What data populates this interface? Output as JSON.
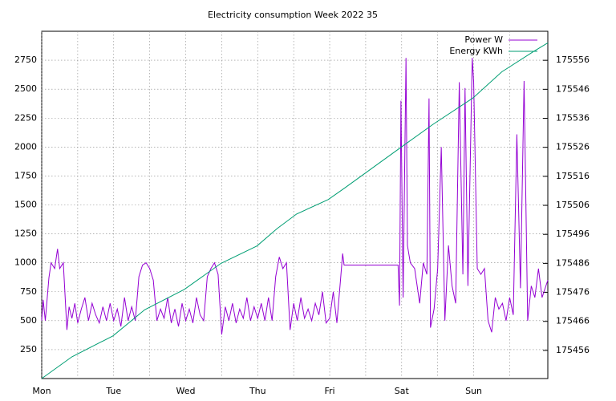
{
  "chart_data": {
    "type": "line",
    "title": "Electricity consumption Week 2022 35",
    "xlim": [
      0,
      7.03
    ],
    "xticks": [
      {
        "value": 0,
        "label": "Mon"
      },
      {
        "value": 1,
        "label": "Tue"
      },
      {
        "value": 2,
        "label": "Wed"
      },
      {
        "value": 3,
        "label": "Thu"
      },
      {
        "value": 4,
        "label": "Fri"
      },
      {
        "value": 5,
        "label": "Sat"
      },
      {
        "value": 6,
        "label": "Sun"
      }
    ],
    "xminorticks": [
      0.5,
      1.5,
      2.5,
      3.5,
      4.5,
      5.5,
      6.5
    ],
    "ylim": [
      0,
      3000
    ],
    "yticks": [
      250,
      500,
      750,
      1000,
      1250,
      1500,
      1750,
      2000,
      2250,
      2500,
      2750
    ],
    "y2lim": [
      175446.3,
      175566
    ],
    "y2ticks": [
      175456,
      175466,
      175476,
      175486,
      175496,
      175506,
      175516,
      175526,
      175536,
      175546,
      175556
    ],
    "grid": true,
    "legend": "top right",
    "series": [
      {
        "name": "Power W",
        "color": "#9400d3",
        "x": [
          0,
          0.02,
          0.05,
          0.1,
          0.13,
          0.18,
          0.22,
          0.25,
          0.3,
          0.35,
          0.38,
          0.42,
          0.46,
          0.5,
          0.55,
          0.6,
          0.65,
          0.7,
          0.75,
          0.8,
          0.85,
          0.9,
          0.95,
          1.0,
          1.05,
          1.1,
          1.15,
          1.2,
          1.25,
          1.3,
          1.35,
          1.4,
          1.45,
          1.5,
          1.55,
          1.6,
          1.65,
          1.7,
          1.75,
          1.8,
          1.85,
          1.9,
          1.95,
          2.0,
          2.05,
          2.1,
          2.15,
          2.2,
          2.25,
          2.3,
          2.35,
          2.4,
          2.45,
          2.5,
          2.55,
          2.6,
          2.65,
          2.7,
          2.75,
          2.8,
          2.85,
          2.9,
          2.95,
          3.0,
          3.05,
          3.1,
          3.15,
          3.2,
          3.25,
          3.3,
          3.35,
          3.4,
          3.45,
          3.5,
          3.55,
          3.6,
          3.65,
          3.7,
          3.75,
          3.8,
          3.85,
          3.9,
          3.95,
          4.0,
          4.05,
          4.1,
          4.15,
          4.18,
          4.2,
          4.95,
          4.97,
          4.99,
          5.02,
          5.06,
          5.08,
          5.12,
          5.18,
          5.25,
          5.3,
          5.35,
          5.38,
          5.4,
          5.45,
          5.5,
          5.55,
          5.6,
          5.65,
          5.7,
          5.75,
          5.8,
          5.85,
          5.88,
          5.92,
          5.98,
          6.0,
          6.05,
          6.1,
          6.15,
          6.2,
          6.25,
          6.3,
          6.35,
          6.4,
          6.45,
          6.5,
          6.55,
          6.6,
          6.65,
          6.7,
          6.75,
          6.8,
          6.85,
          6.9,
          6.95,
          7.03
        ],
        "values": [
          500,
          680,
          500,
          870,
          1000,
          950,
          1120,
          950,
          1000,
          420,
          620,
          520,
          650,
          480,
          600,
          700,
          500,
          650,
          550,
          480,
          620,
          500,
          650,
          500,
          600,
          450,
          700,
          500,
          620,
          500,
          880,
          980,
          1000,
          950,
          850,
          500,
          600,
          520,
          700,
          480,
          600,
          450,
          650,
          500,
          600,
          480,
          700,
          550,
          500,
          880,
          950,
          1000,
          900,
          380,
          620,
          500,
          650,
          480,
          600,
          520,
          700,
          500,
          620,
          520,
          650,
          500,
          700,
          500,
          880,
          1050,
          950,
          1000,
          420,
          650,
          500,
          700,
          520,
          600,
          500,
          650,
          550,
          750,
          480,
          520,
          750,
          480,
          850,
          1080,
          980,
          980,
          630,
          2400,
          700,
          2770,
          1150,
          1000,
          950,
          650,
          1000,
          900,
          2420,
          440,
          600,
          950,
          2000,
          500,
          1150,
          800,
          650,
          2560,
          900,
          2510,
          800,
          2770,
          2560,
          950,
          900,
          950,
          500,
          400,
          700,
          600,
          650,
          500,
          700,
          550,
          2110,
          780,
          2570,
          500,
          800,
          700,
          950,
          700,
          850
        ]
      },
      {
        "name": "Energy KWh",
        "color": "#009e73",
        "axis": "y2",
        "x": [
          0,
          0.42,
          0.99,
          1.43,
          1.98,
          2.49,
          2.99,
          3.27,
          3.54,
          3.98,
          4.21,
          4.99,
          5.44,
          5.99,
          6.39,
          6.83,
          7.03
        ],
        "values": [
          175446.3,
          175453.8,
          175461,
          175470,
          175477,
          175486,
          175492,
          175498,
          175503,
          175508,
          175512,
          175526,
          175534,
          175543,
          175552,
          175559,
          175562
        ]
      }
    ]
  }
}
